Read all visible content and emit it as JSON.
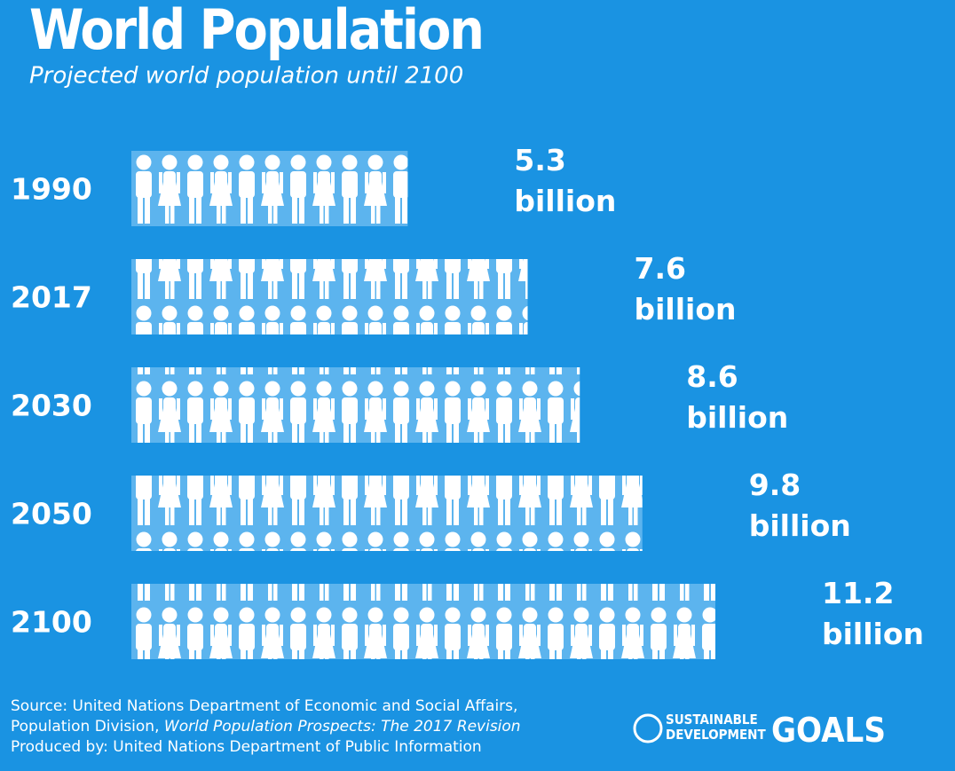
{
  "chart_data": {
    "type": "pictogram",
    "title": "World Population",
    "subtitle": "Projected world population until 2100",
    "categories": [
      "1990",
      "2017",
      "2030",
      "2050",
      "2100"
    ],
    "values": [
      5.3,
      7.6,
      8.6,
      9.8,
      11.2
    ],
    "value_labels": [
      "5.3 billion",
      "7.6 billion",
      "8.6 billion",
      "9.8 billion",
      "11.2 billion"
    ]
  },
  "footer": {
    "line1": "Source: United Nations Department of Economic and Social Affairs,",
    "line2": "Population Division, ",
    "line2_italic": "World Population Prospects: The 2017 Revision",
    "line3": "Produced by: United Nations Department of Public Information"
  },
  "logo": {
    "line1": "SUSTAINABLE",
    "line2": "DEVELOPMENT",
    "word": "GOALS"
  }
}
